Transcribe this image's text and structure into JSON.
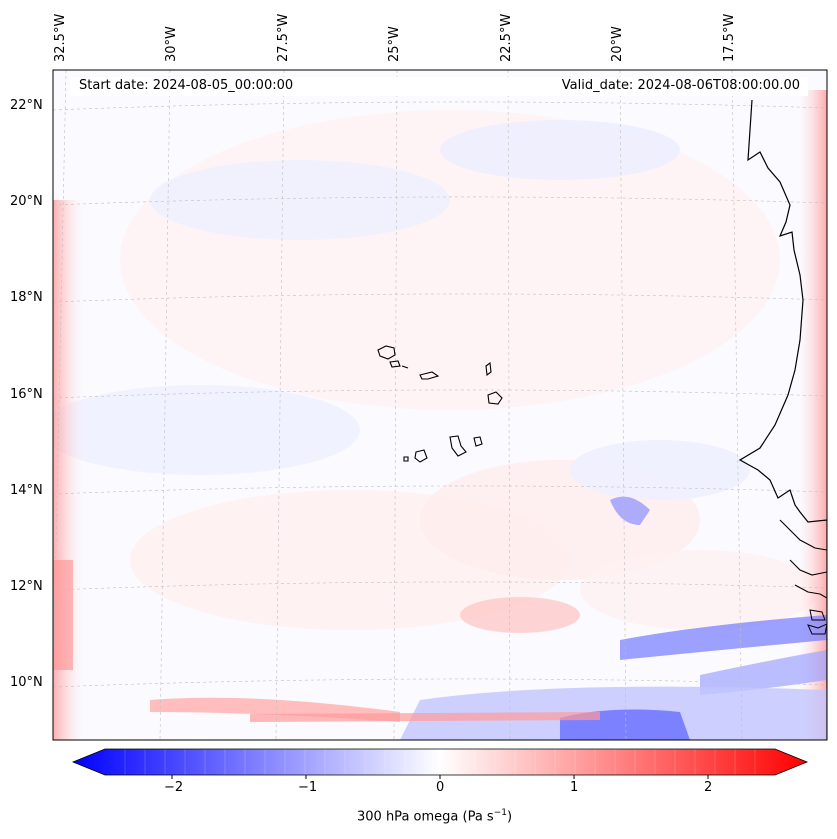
{
  "map": {
    "start_label": "Start date: 2024-08-05_00:00:00",
    "valid_label": "Valid_date: 2024-08-06T08:00:00.00",
    "lon_labels": [
      "32.5°W",
      "30°W",
      "27.5°W",
      "25°W",
      "22.5°W",
      "20°W",
      "17.5°W"
    ],
    "lat_labels": [
      "22°N",
      "20°N",
      "18°N",
      "16°N",
      "14°N",
      "12°N",
      "10°N"
    ],
    "colorbar": {
      "ticks": [
        "−2",
        "−1",
        "0",
        "1",
        "2"
      ],
      "tick_values": [
        -2,
        -1,
        0,
        1,
        2
      ],
      "range": [
        -2.5,
        2.5
      ],
      "label": "300 hPa omega (Pa s",
      "label_exp": "−1",
      "label_close": ")",
      "cmap": "bwr",
      "low_color": "#0000ff",
      "mid_color": "#ffffff",
      "high_color": "#ff0000"
    }
  }
}
